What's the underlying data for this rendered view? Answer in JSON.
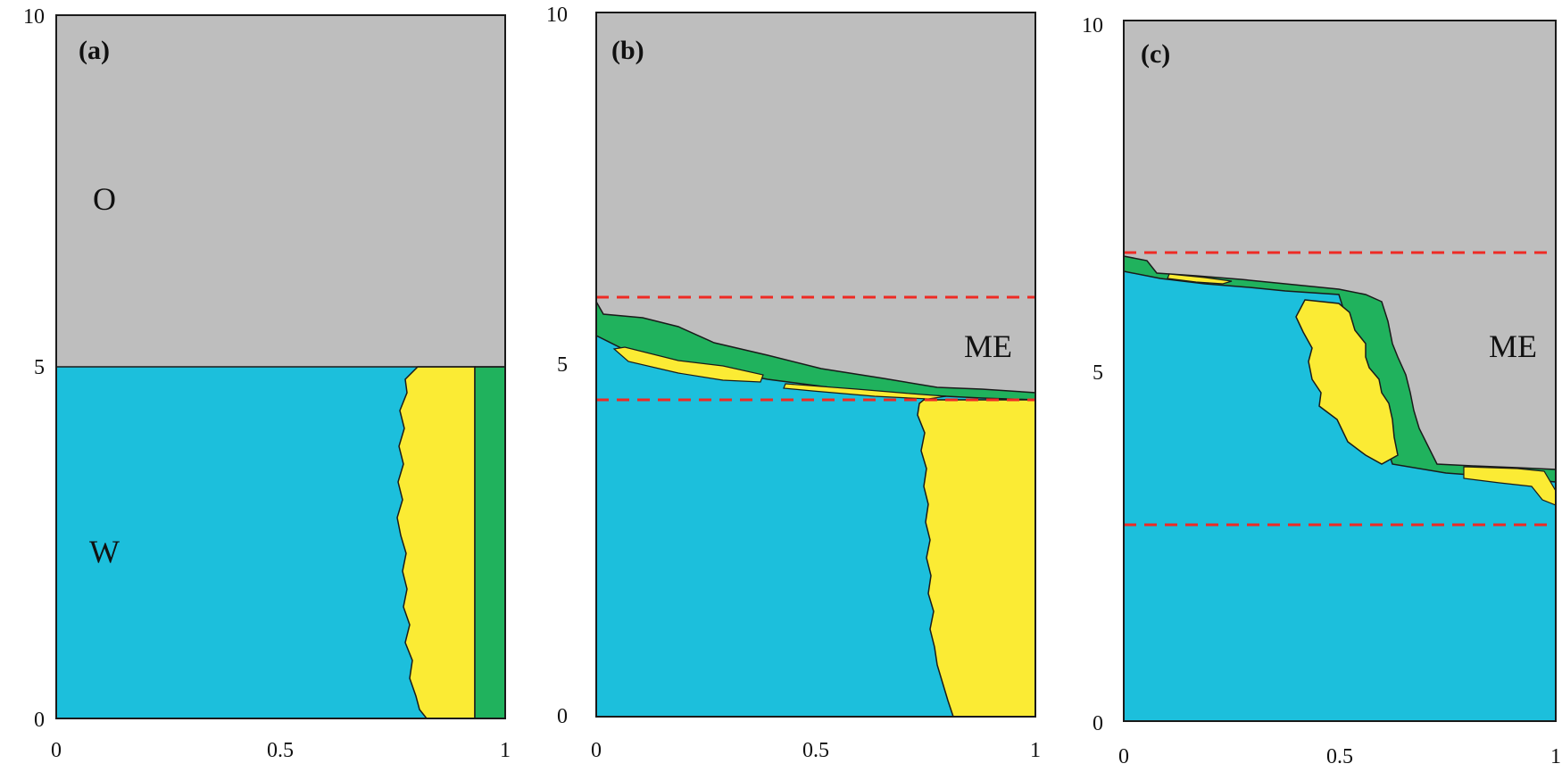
{
  "figure": {
    "panels": [
      {
        "id": "a",
        "label": "(a)",
        "yticks": [
          "10",
          "5",
          "0"
        ],
        "xticks": [
          "0",
          "0.5",
          "1"
        ],
        "phase_labels": {
          "upper": "O",
          "lower": "W"
        },
        "interfaces": []
      },
      {
        "id": "b",
        "label": "(b)",
        "yticks": [
          "10",
          "5",
          "0"
        ],
        "xticks": [
          "0",
          "0.5",
          "1"
        ],
        "phase_labels": {
          "upper": "ME"
        },
        "interfaces": [
          6.0,
          4.5
        ]
      },
      {
        "id": "c",
        "label": "(c)",
        "yticks": [
          "10",
          "5",
          "0"
        ],
        "xticks": [
          "0",
          "0.5",
          "1"
        ],
        "phase_labels": {
          "upper": "ME"
        },
        "interfaces": [
          6.7,
          2.8
        ]
      }
    ],
    "colors": {
      "oil": "#bebebe",
      "water": "#1cbfdc",
      "yellow_phase": "#fbeb34",
      "green_phase": "#20b25d",
      "interface_line": "#ee2a24",
      "outline": "#1a1a1a"
    }
  }
}
